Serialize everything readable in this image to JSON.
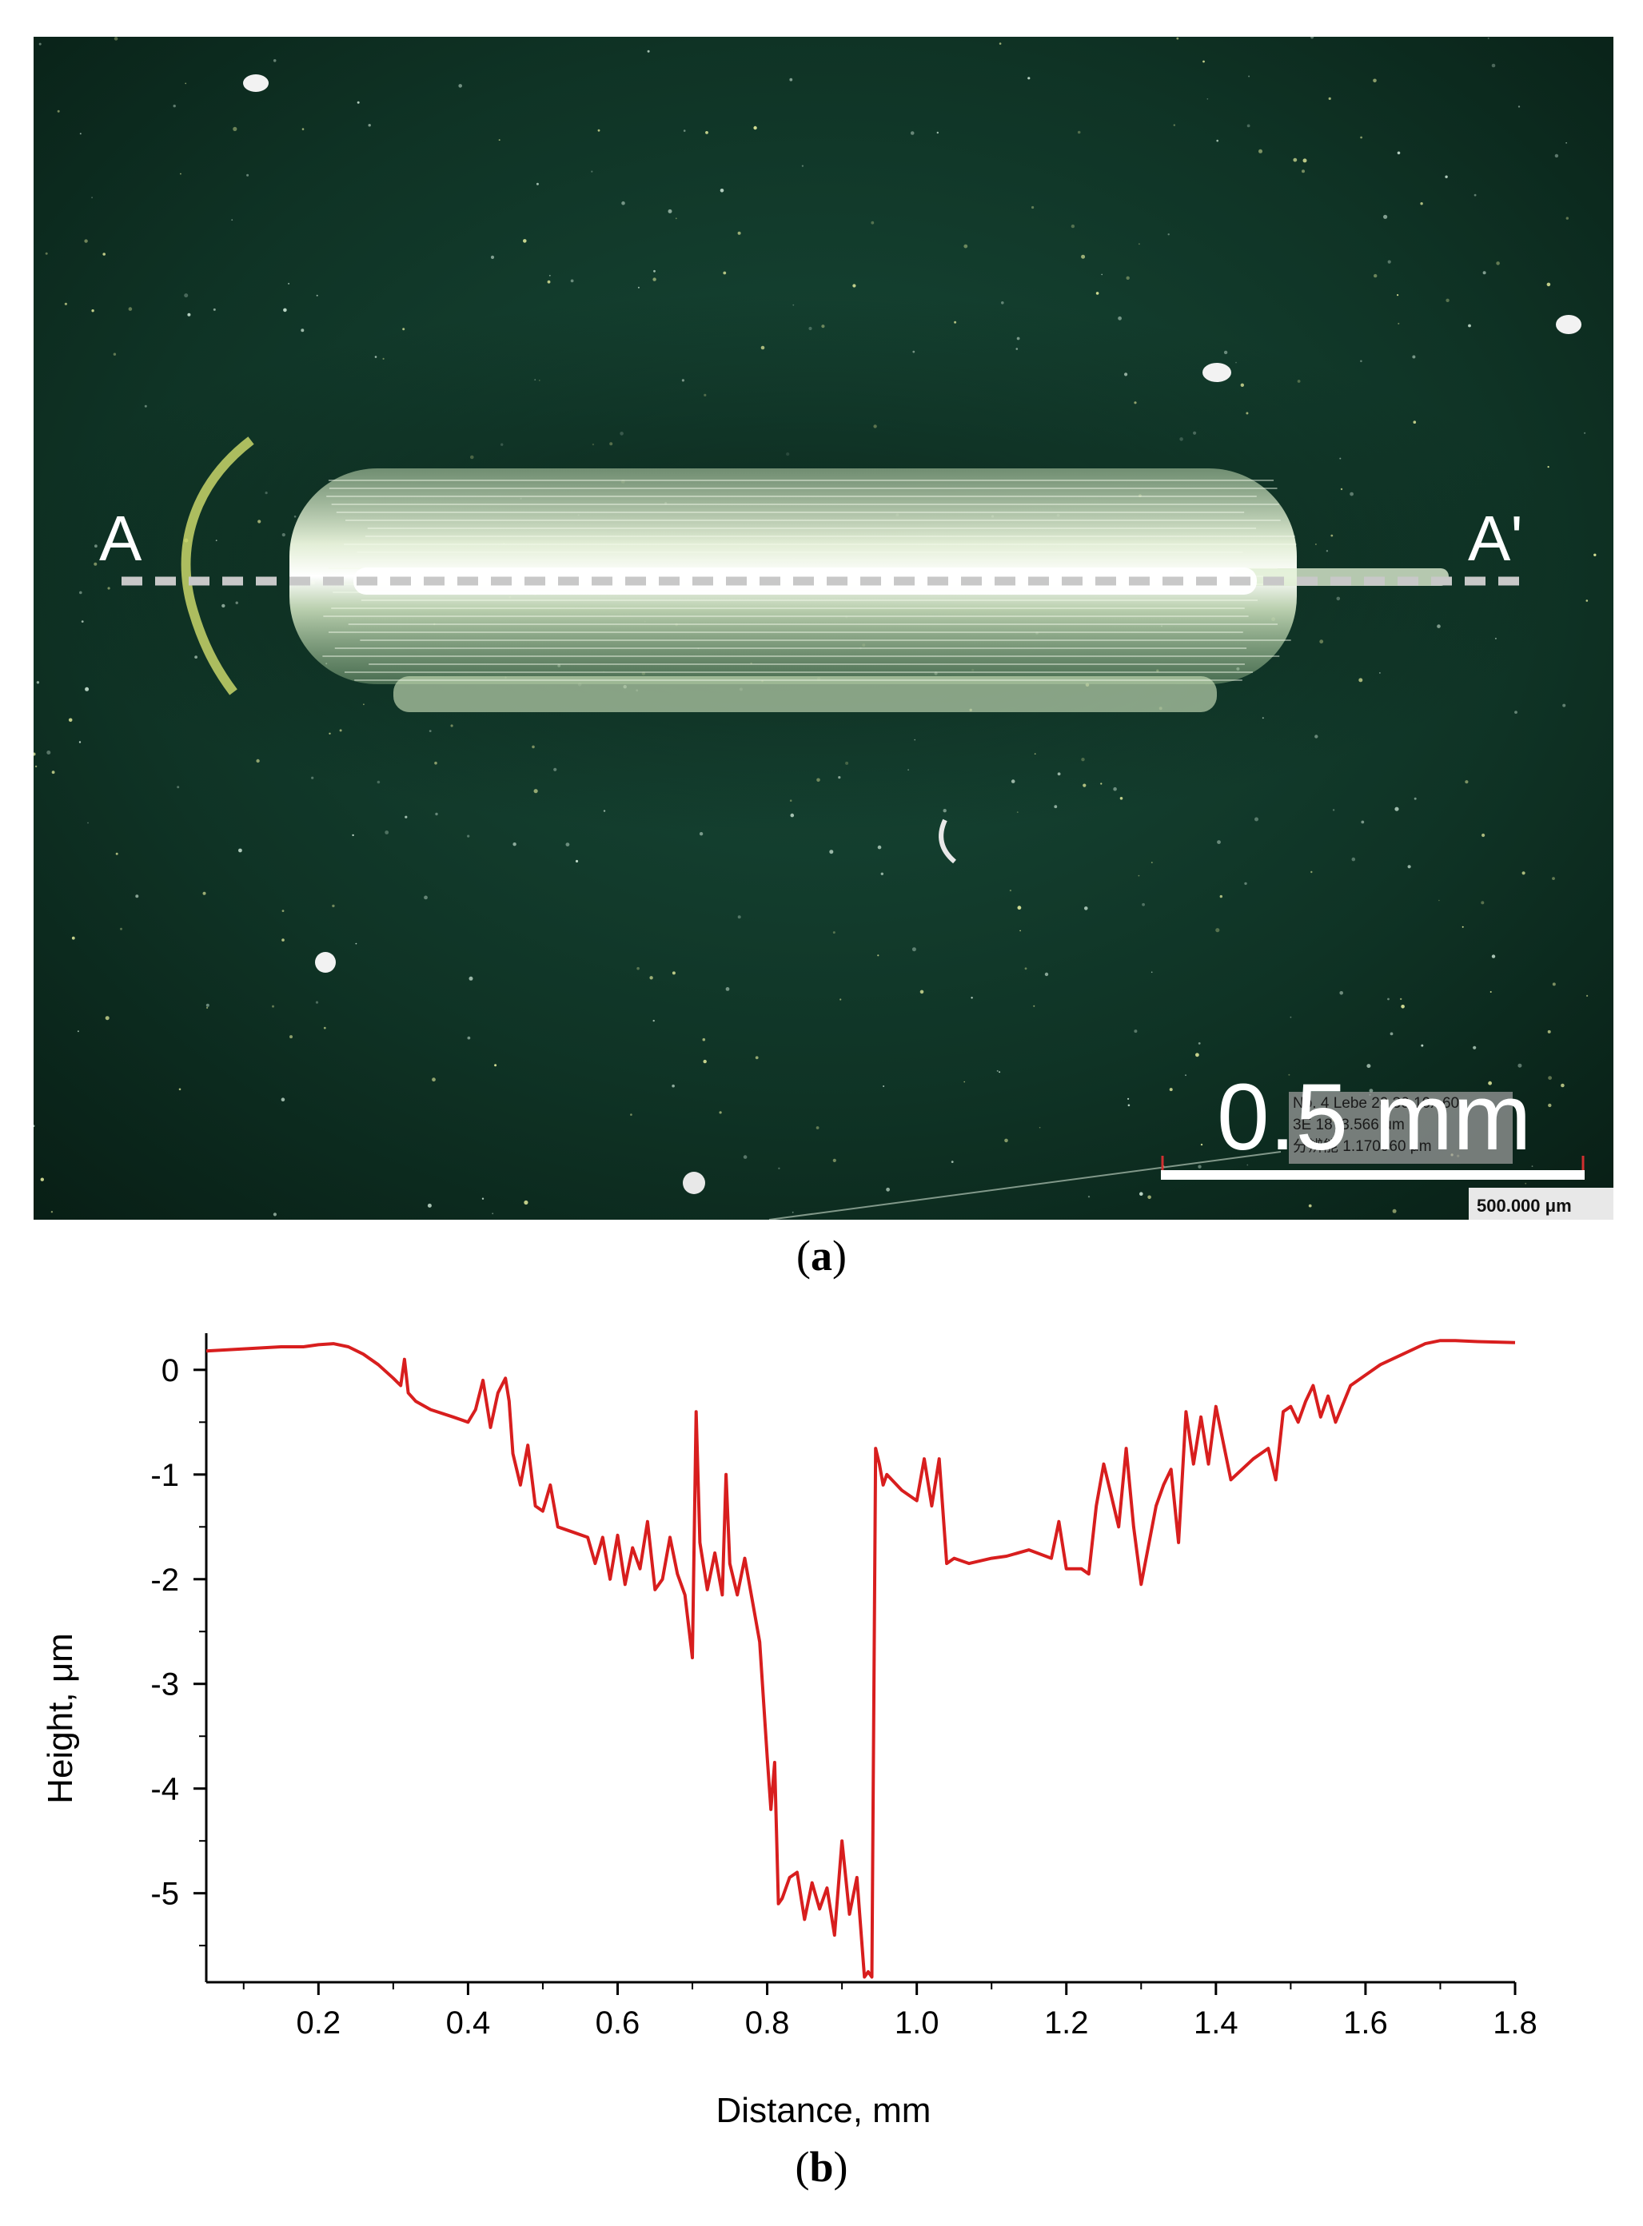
{
  "panel_a": {
    "caption_label": "a",
    "section_start": "A",
    "section_end": "A'",
    "scale_text": "0.5 mm",
    "overlay_lines": [
      "No. 4 Lebe 20.30 10x 60",
      "3E 1873.566 μm",
      "分辨能 1.170960 μm"
    ],
    "scalebar_readout": "500.000 μm"
  },
  "panel_b": {
    "caption_label": "b"
  },
  "colors": {
    "profile_line": "#d81e1e",
    "micrograph_bg": "#0d2a1f",
    "track": "#e6f2d2"
  },
  "chart_data": {
    "type": "line",
    "xlabel": "Distance, mm",
    "ylabel": "Height, μm",
    "xlim": [
      0.05,
      1.8
    ],
    "ylim": [
      -5.85,
      0.35
    ],
    "xticks": [
      0.2,
      0.4,
      0.6,
      0.8,
      1.0,
      1.2,
      1.4,
      1.6,
      1.8
    ],
    "xtick_labels": [
      "0.2",
      "0.4",
      "0.6",
      "0.8",
      "1.0",
      "1.2",
      "1.4",
      "1.6",
      "1.8"
    ],
    "yticks": [
      0,
      -1,
      -2,
      -3,
      -4,
      -5
    ],
    "ytick_labels": [
      "0",
      "-1",
      "-2",
      "-3",
      "-4",
      "-5"
    ],
    "grid": false,
    "series": [
      {
        "x": [
          0.05,
          0.1,
          0.15,
          0.18,
          0.2,
          0.22,
          0.24,
          0.26,
          0.28,
          0.3,
          0.31,
          0.315,
          0.32,
          0.33,
          0.35,
          0.38,
          0.4,
          0.41,
          0.42,
          0.43,
          0.44,
          0.45,
          0.455,
          0.46,
          0.47,
          0.48,
          0.49,
          0.5,
          0.51,
          0.52,
          0.54,
          0.56,
          0.57,
          0.58,
          0.59,
          0.6,
          0.61,
          0.62,
          0.63,
          0.64,
          0.65,
          0.66,
          0.67,
          0.68,
          0.69,
          0.7,
          0.705,
          0.71,
          0.72,
          0.73,
          0.74,
          0.745,
          0.75,
          0.76,
          0.77,
          0.78,
          0.79,
          0.8,
          0.805,
          0.81,
          0.815,
          0.82,
          0.83,
          0.84,
          0.85,
          0.86,
          0.87,
          0.88,
          0.89,
          0.9,
          0.91,
          0.92,
          0.93,
          0.935,
          0.94,
          0.945,
          0.95,
          0.955,
          0.96,
          0.98,
          1.0,
          1.01,
          1.02,
          1.03,
          1.04,
          1.05,
          1.07,
          1.1,
          1.12,
          1.15,
          1.18,
          1.19,
          1.2,
          1.22,
          1.23,
          1.24,
          1.25,
          1.26,
          1.27,
          1.28,
          1.29,
          1.3,
          1.32,
          1.33,
          1.34,
          1.35,
          1.36,
          1.37,
          1.38,
          1.39,
          1.4,
          1.42,
          1.45,
          1.47,
          1.48,
          1.49,
          1.5,
          1.51,
          1.52,
          1.53,
          1.54,
          1.55,
          1.56,
          1.58,
          1.6,
          1.62,
          1.65,
          1.68,
          1.7,
          1.72,
          1.75,
          1.8
        ],
        "y": [
          0.18,
          0.2,
          0.22,
          0.22,
          0.24,
          0.25,
          0.22,
          0.15,
          0.05,
          -0.08,
          -0.15,
          0.1,
          -0.22,
          -0.3,
          -0.38,
          -0.45,
          -0.5,
          -0.38,
          -0.1,
          -0.55,
          -0.22,
          -0.08,
          -0.3,
          -0.8,
          -1.1,
          -0.72,
          -1.3,
          -1.35,
          -1.1,
          -1.5,
          -1.55,
          -1.6,
          -1.85,
          -1.6,
          -2.0,
          -1.58,
          -2.05,
          -1.7,
          -1.9,
          -1.45,
          -2.1,
          -2.0,
          -1.6,
          -1.95,
          -2.15,
          -2.75,
          -0.4,
          -1.65,
          -2.1,
          -1.75,
          -2.15,
          -1.0,
          -1.85,
          -2.15,
          -1.8,
          -2.2,
          -2.6,
          -3.7,
          -4.2,
          -3.75,
          -5.1,
          -5.05,
          -4.85,
          -4.8,
          -5.25,
          -4.9,
          -5.15,
          -4.95,
          -5.4,
          -4.5,
          -5.2,
          -4.85,
          -5.8,
          -5.75,
          -5.8,
          -0.75,
          -0.9,
          -1.1,
          -1.0,
          -1.15,
          -1.25,
          -0.85,
          -1.3,
          -0.85,
          -1.85,
          -1.8,
          -1.85,
          -1.8,
          -1.78,
          -1.72,
          -1.8,
          -1.45,
          -1.9,
          -1.9,
          -1.95,
          -1.3,
          -0.9,
          -1.2,
          -1.5,
          -0.75,
          -1.5,
          -2.05,
          -1.3,
          -1.1,
          -0.95,
          -1.65,
          -0.4,
          -0.9,
          -0.45,
          -0.9,
          -0.35,
          -1.05,
          -0.85,
          -0.75,
          -1.05,
          -0.4,
          -0.35,
          -0.5,
          -0.3,
          -0.15,
          -0.45,
          -0.25,
          -0.5,
          -0.15,
          -0.05,
          0.05,
          0.15,
          0.25,
          0.28,
          0.28,
          0.27,
          0.26
        ]
      }
    ]
  }
}
